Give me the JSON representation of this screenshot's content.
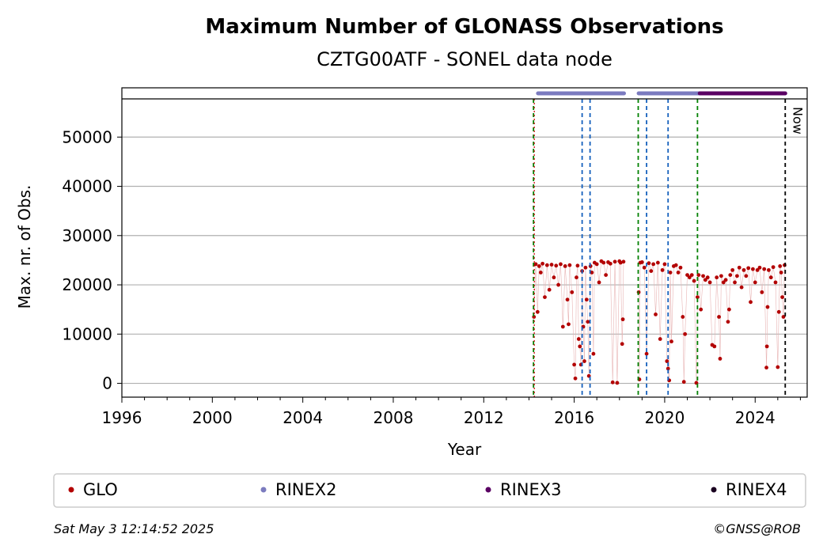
{
  "chart_data": {
    "type": "scatter",
    "title": "Maximum Number of GLONASS Observations",
    "subtitle": "CZTG00ATF - SONEL data node",
    "xlabel": "Year",
    "ylabel": "Max. nr. of Obs.",
    "xlim": [
      1996,
      2026.3
    ],
    "ylim": [
      -2800,
      60000
    ],
    "xticks": [
      1996,
      2000,
      2004,
      2008,
      2012,
      2016,
      2020,
      2024
    ],
    "yticks": [
      0,
      10000,
      20000,
      30000,
      40000,
      50000
    ],
    "grid": "horizontal",
    "now_label": "Now",
    "now_x": 2025.33,
    "green_lines": [
      2014.2,
      2018.83,
      2021.45
    ],
    "blue_lines": [
      2016.35,
      2016.7,
      2019.2,
      2020.15
    ],
    "rinex_bars": [
      {
        "name": "RINEX2",
        "color": "#7b7bbf",
        "start": 2014.4,
        "end": 2018.2
      },
      {
        "name": "RINEX2",
        "color": "#7b7bbf",
        "start": 2018.85,
        "end": 2021.55
      },
      {
        "name": "RINEX3",
        "color": "#5a0063",
        "start": 2021.55,
        "end": 2025.33
      }
    ],
    "series": [
      {
        "name": "GLO",
        "color": "#b30000",
        "points": [
          [
            2014.22,
            13500
          ],
          [
            2014.3,
            24200
          ],
          [
            2014.38,
            14500
          ],
          [
            2014.45,
            23800
          ],
          [
            2014.52,
            22500
          ],
          [
            2014.6,
            24300
          ],
          [
            2014.7,
            17500
          ],
          [
            2014.8,
            24000
          ],
          [
            2014.9,
            19000
          ],
          [
            2015.0,
            24100
          ],
          [
            2015.1,
            21500
          ],
          [
            2015.2,
            23900
          ],
          [
            2015.3,
            20000
          ],
          [
            2015.4,
            24200
          ],
          [
            2015.5,
            11500
          ],
          [
            2015.6,
            23800
          ],
          [
            2015.7,
            17000
          ],
          [
            2015.75,
            12000
          ],
          [
            2015.8,
            24000
          ],
          [
            2015.9,
            18500
          ],
          [
            2016.0,
            3800
          ],
          [
            2016.05,
            1000
          ],
          [
            2016.1,
            21500
          ],
          [
            2016.15,
            23900
          ],
          [
            2016.2,
            9000
          ],
          [
            2016.25,
            7500
          ],
          [
            2016.3,
            3800
          ],
          [
            2016.35,
            22800
          ],
          [
            2016.4,
            11500
          ],
          [
            2016.45,
            4500
          ],
          [
            2016.5,
            23500
          ],
          [
            2016.55,
            17000
          ],
          [
            2016.6,
            12500
          ],
          [
            2016.65,
            1500
          ],
          [
            2016.72,
            23800
          ],
          [
            2016.78,
            22500
          ],
          [
            2016.85,
            6000
          ],
          [
            2016.9,
            24500
          ],
          [
            2017.0,
            24200
          ],
          [
            2017.1,
            20500
          ],
          [
            2017.2,
            24800
          ],
          [
            2017.3,
            24500
          ],
          [
            2017.4,
            22000
          ],
          [
            2017.5,
            24600
          ],
          [
            2017.6,
            24300
          ],
          [
            2017.7,
            200
          ],
          [
            2017.8,
            24700
          ],
          [
            2017.9,
            100
          ],
          [
            2018.0,
            24800
          ],
          [
            2018.05,
            24500
          ],
          [
            2018.12,
            8000
          ],
          [
            2018.15,
            13000
          ],
          [
            2018.18,
            24700
          ],
          [
            2018.85,
            18500
          ],
          [
            2018.88,
            800
          ],
          [
            2018.92,
            24500
          ],
          [
            2019.0,
            24600
          ],
          [
            2019.1,
            23500
          ],
          [
            2019.2,
            6000
          ],
          [
            2019.3,
            24400
          ],
          [
            2019.4,
            22800
          ],
          [
            2019.5,
            24200
          ],
          [
            2019.6,
            14000
          ],
          [
            2019.7,
            24500
          ],
          [
            2019.8,
            9000
          ],
          [
            2019.9,
            23000
          ],
          [
            2020.0,
            24200
          ],
          [
            2020.1,
            4500
          ],
          [
            2020.15,
            3000
          ],
          [
            2020.2,
            600
          ],
          [
            2020.25,
            22500
          ],
          [
            2020.3,
            8500
          ],
          [
            2020.4,
            23800
          ],
          [
            2020.5,
            24000
          ],
          [
            2020.6,
            22500
          ],
          [
            2020.7,
            23500
          ],
          [
            2020.8,
            13500
          ],
          [
            2020.85,
            300
          ],
          [
            2020.9,
            10000
          ],
          [
            2021.0,
            22000
          ],
          [
            2021.1,
            21500
          ],
          [
            2021.2,
            22000
          ],
          [
            2021.3,
            20800
          ],
          [
            2021.4,
            100
          ],
          [
            2021.45,
            17500
          ],
          [
            2021.5,
            22000
          ],
          [
            2021.6,
            15000
          ],
          [
            2021.7,
            21800
          ],
          [
            2021.8,
            21000
          ],
          [
            2021.9,
            21500
          ],
          [
            2022.0,
            20500
          ],
          [
            2022.1,
            7800
          ],
          [
            2022.2,
            7500
          ],
          [
            2022.3,
            21500
          ],
          [
            2022.4,
            13500
          ],
          [
            2022.45,
            5000
          ],
          [
            2022.5,
            21800
          ],
          [
            2022.6,
            20500
          ],
          [
            2022.7,
            21000
          ],
          [
            2022.8,
            12500
          ],
          [
            2022.85,
            15000
          ],
          [
            2022.9,
            22000
          ],
          [
            2023.0,
            23000
          ],
          [
            2023.1,
            20500
          ],
          [
            2023.2,
            21800
          ],
          [
            2023.3,
            23500
          ],
          [
            2023.4,
            19500
          ],
          [
            2023.5,
            23000
          ],
          [
            2023.6,
            21800
          ],
          [
            2023.7,
            23400
          ],
          [
            2023.8,
            16500
          ],
          [
            2023.9,
            23200
          ],
          [
            2024.0,
            20500
          ],
          [
            2024.1,
            23000
          ],
          [
            2024.2,
            23500
          ],
          [
            2024.3,
            18500
          ],
          [
            2024.4,
            23200
          ],
          [
            2024.5,
            3200
          ],
          [
            2024.52,
            7500
          ],
          [
            2024.55,
            15500
          ],
          [
            2024.6,
            23000
          ],
          [
            2024.7,
            21500
          ],
          [
            2024.8,
            23600
          ],
          [
            2024.9,
            20500
          ],
          [
            2025.0,
            3300
          ],
          [
            2025.05,
            14500
          ],
          [
            2025.1,
            23800
          ],
          [
            2025.15,
            22500
          ],
          [
            2025.2,
            17500
          ],
          [
            2025.25,
            13500
          ],
          [
            2025.3,
            24000
          ]
        ]
      }
    ]
  },
  "legend": [
    {
      "label": "GLO",
      "color": "#b30000"
    },
    {
      "label": "RINEX2",
      "color": "#7b7bbf"
    },
    {
      "label": "RINEX3",
      "color": "#5a0063"
    },
    {
      "label": "RINEX4",
      "color": "#1a0020"
    }
  ],
  "footer": {
    "timestamp": "Sat May  3 12:14:52 2025",
    "credit": "©GNSS@ROB"
  }
}
